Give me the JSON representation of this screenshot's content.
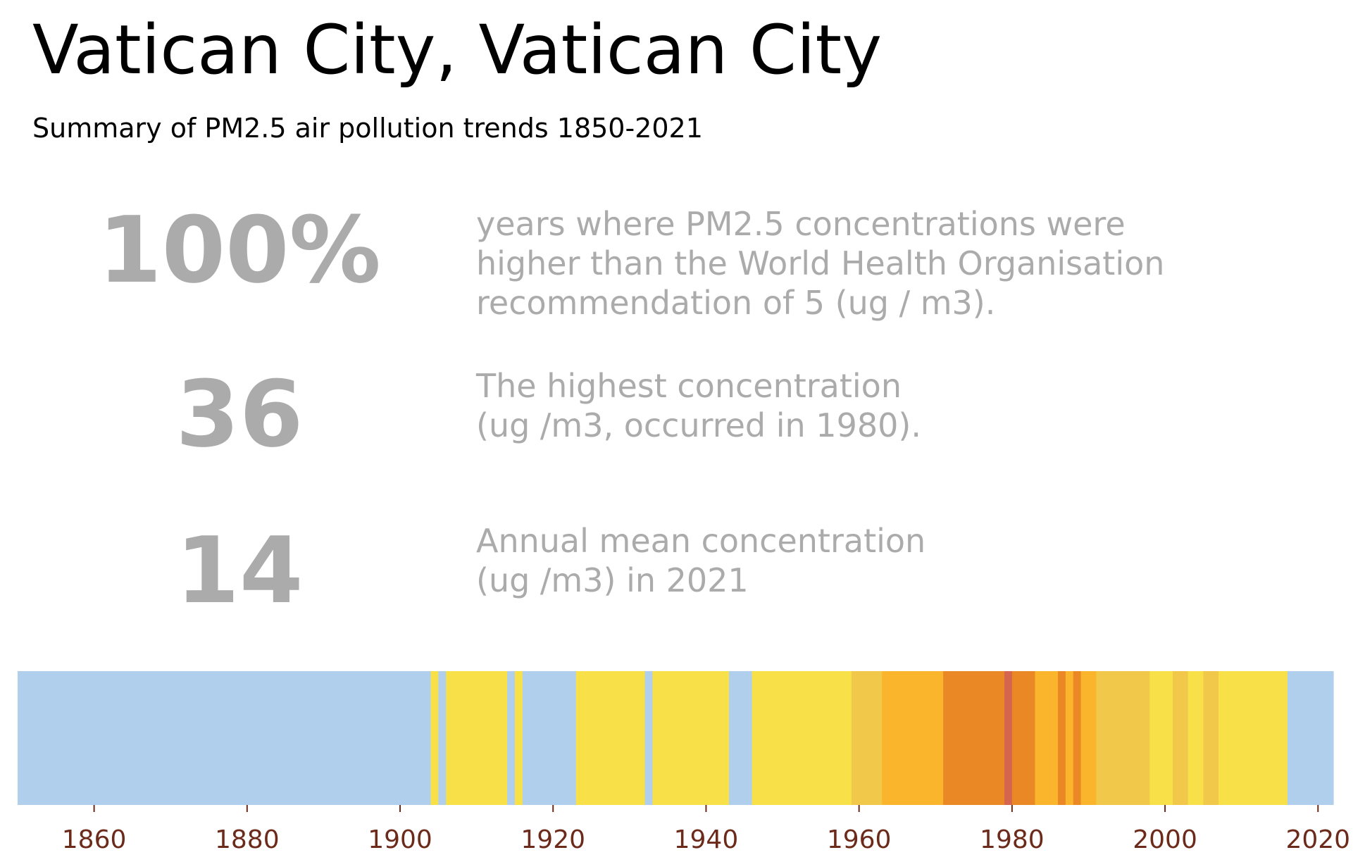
{
  "header": {
    "title": "Vatican City, Vatican City",
    "subtitle": "Summary of PM2.5 air pollution trends 1850-2021"
  },
  "stats": [
    {
      "value": "100%",
      "lines": [
        "years where PM2.5 concentrations were",
        "higher than the World Health Organisation",
        "recommendation of 5 (ug / m3)."
      ]
    },
    {
      "value": "36",
      "lines": [
        "The highest concentration",
        "(ug /m3, occurred in 1980)."
      ]
    },
    {
      "value": "14",
      "lines": [
        "Annual mean concentration",
        "(ug /m3) in 2021"
      ]
    }
  ],
  "chart_data": {
    "type": "heatmap",
    "xlim": [
      1850,
      2022
    ],
    "x_ticks": [
      "1860",
      "1880",
      "1900",
      "1920",
      "1940",
      "1960",
      "1980",
      "2000",
      "2020"
    ],
    "color_scale": {
      "light_blue": "#b0cfed",
      "yellow": "#f8e048",
      "gold": "#f2c84b",
      "amber": "#fbb52c",
      "orange": "#ea8826",
      "red": "#d6654f"
    },
    "segments": [
      {
        "start": 1850,
        "end": 1904,
        "level": "light_blue"
      },
      {
        "start": 1904,
        "end": 1905,
        "level": "yellow"
      },
      {
        "start": 1905,
        "end": 1906,
        "level": "light_blue"
      },
      {
        "start": 1906,
        "end": 1914,
        "level": "yellow"
      },
      {
        "start": 1914,
        "end": 1915,
        "level": "light_blue"
      },
      {
        "start": 1915,
        "end": 1916,
        "level": "yellow"
      },
      {
        "start": 1916,
        "end": 1923,
        "level": "light_blue"
      },
      {
        "start": 1923,
        "end": 1932,
        "level": "yellow"
      },
      {
        "start": 1932,
        "end": 1933,
        "level": "light_blue"
      },
      {
        "start": 1933,
        "end": 1943,
        "level": "yellow"
      },
      {
        "start": 1943,
        "end": 1946,
        "level": "light_blue"
      },
      {
        "start": 1946,
        "end": 1959,
        "level": "yellow"
      },
      {
        "start": 1959,
        "end": 1963,
        "level": "gold"
      },
      {
        "start": 1963,
        "end": 1971,
        "level": "amber"
      },
      {
        "start": 1971,
        "end": 1979,
        "level": "orange"
      },
      {
        "start": 1979,
        "end": 1980,
        "level": "red"
      },
      {
        "start": 1980,
        "end": 1983,
        "level": "orange"
      },
      {
        "start": 1983,
        "end": 1986,
        "level": "amber"
      },
      {
        "start": 1986,
        "end": 1987,
        "level": "orange"
      },
      {
        "start": 1987,
        "end": 1988,
        "level": "amber"
      },
      {
        "start": 1988,
        "end": 1989,
        "level": "orange"
      },
      {
        "start": 1989,
        "end": 1991,
        "level": "amber"
      },
      {
        "start": 1991,
        "end": 1998,
        "level": "gold"
      },
      {
        "start": 1998,
        "end": 2001,
        "level": "yellow"
      },
      {
        "start": 2001,
        "end": 2003,
        "level": "gold"
      },
      {
        "start": 2003,
        "end": 2005,
        "level": "yellow"
      },
      {
        "start": 2005,
        "end": 2007,
        "level": "gold"
      },
      {
        "start": 2007,
        "end": 2016,
        "level": "yellow"
      },
      {
        "start": 2016,
        "end": 2022,
        "level": "light_blue"
      }
    ]
  }
}
